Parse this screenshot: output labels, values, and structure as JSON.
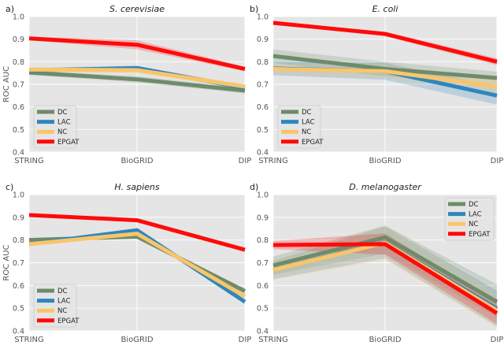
{
  "figure": {
    "ylabel": "ROC AUC"
  },
  "chart_data": [
    {
      "type": "line",
      "panel_label": "a)",
      "title": "S. cerevisiae",
      "ylabel": "ROC AUC",
      "categories": [
        "STRING",
        "BioGRID",
        "DIP"
      ],
      "ylim": [
        0.4,
        1.0
      ],
      "yticks": [
        "0.4",
        "0.5",
        "0.6",
        "0.7",
        "0.8",
        "0.9",
        "1.0"
      ],
      "grid": true,
      "legend_position": "lower-left",
      "series": [
        {
          "name": "DC",
          "color": "#6e8b6a",
          "values": [
            0.752,
            0.722,
            0.672
          ],
          "lower": [
            0.742,
            0.708,
            0.66
          ],
          "upper": [
            0.762,
            0.736,
            0.684
          ]
        },
        {
          "name": "LAC",
          "color": "#2f86bd",
          "values": [
            0.762,
            0.772,
            0.684
          ],
          "lower": [
            0.752,
            0.762,
            0.674
          ],
          "upper": [
            0.772,
            0.782,
            0.694
          ]
        },
        {
          "name": "NC",
          "color": "#f9c56a",
          "values": [
            0.765,
            0.763,
            0.69
          ],
          "lower": [
            0.754,
            0.748,
            0.68
          ],
          "upper": [
            0.776,
            0.778,
            0.7
          ]
        },
        {
          "name": "EPGAT",
          "color": "#ff0a0a",
          "values": [
            0.903,
            0.875,
            0.768
          ],
          "lower": [
            0.895,
            0.855,
            0.758
          ],
          "upper": [
            0.911,
            0.895,
            0.778
          ]
        }
      ]
    },
    {
      "type": "line",
      "panel_label": "b)",
      "title": "E. coli",
      "ylabel": "",
      "categories": [
        "STRING",
        "BioGRID",
        "DIP"
      ],
      "ylim": [
        0.4,
        1.0
      ],
      "yticks": [
        "0.4",
        "0.5",
        "0.6",
        "0.7",
        "0.8",
        "0.9",
        "1.0"
      ],
      "grid": true,
      "legend_position": "lower-left",
      "series": [
        {
          "name": "DC",
          "color": "#6e8b6a",
          "values": [
            0.825,
            0.768,
            0.728
          ],
          "lower": [
            0.795,
            0.735,
            0.7
          ],
          "upper": [
            0.855,
            0.8,
            0.756
          ]
        },
        {
          "name": "LAC",
          "color": "#2f86bd",
          "values": [
            0.77,
            0.758,
            0.65
          ],
          "lower": [
            0.74,
            0.72,
            0.61
          ],
          "upper": [
            0.8,
            0.795,
            0.69
          ]
        },
        {
          "name": "NC",
          "color": "#f9c56a",
          "values": [
            0.768,
            0.758,
            0.69
          ],
          "lower": [
            0.745,
            0.728,
            0.66
          ],
          "upper": [
            0.791,
            0.788,
            0.72
          ]
        },
        {
          "name": "EPGAT",
          "color": "#ff0a0a",
          "values": [
            0.972,
            0.923,
            0.8
          ],
          "lower": [
            0.965,
            0.913,
            0.785
          ],
          "upper": [
            0.979,
            0.933,
            0.815
          ]
        }
      ]
    },
    {
      "type": "line",
      "panel_label": "c)",
      "title": "H. sapiens",
      "ylabel": "ROC AUC",
      "categories": [
        "STRING",
        "BioGRID",
        "DIP"
      ],
      "ylim": [
        0.4,
        1.0
      ],
      "yticks": [
        "0.4",
        "0.5",
        "0.6",
        "0.7",
        "0.8",
        "0.9",
        "1.0"
      ],
      "grid": true,
      "legend_position": "lower-left",
      "series": [
        {
          "name": "DC",
          "color": "#6e8b6a",
          "values": [
            0.8,
            0.815,
            0.575
          ],
          "lower": [
            0.792,
            0.808,
            0.565
          ],
          "upper": [
            0.808,
            0.822,
            0.585
          ]
        },
        {
          "name": "LAC",
          "color": "#2f86bd",
          "values": [
            0.782,
            0.843,
            0.528
          ],
          "lower": [
            0.775,
            0.836,
            0.518
          ],
          "upper": [
            0.789,
            0.85,
            0.538
          ]
        },
        {
          "name": "NC",
          "color": "#f9c56a",
          "values": [
            0.782,
            0.828,
            0.552
          ],
          "lower": [
            0.775,
            0.821,
            0.542
          ],
          "upper": [
            0.789,
            0.835,
            0.562
          ]
        },
        {
          "name": "EPGAT",
          "color": "#ff0a0a",
          "values": [
            0.91,
            0.887,
            0.757
          ],
          "lower": [
            0.905,
            0.882,
            0.751
          ],
          "upper": [
            0.915,
            0.892,
            0.763
          ]
        }
      ]
    },
    {
      "type": "line",
      "panel_label": "d)",
      "title": "D. melanogaster",
      "ylabel": "",
      "categories": [
        "STRING",
        "BioGRID",
        "DIP"
      ],
      "ylim": [
        0.4,
        1.0
      ],
      "yticks": [
        "0.4",
        "0.5",
        "0.6",
        "0.7",
        "0.8",
        "0.9",
        "1.0"
      ],
      "grid": true,
      "legend_position": "upper-right",
      "series": [
        {
          "name": "DC",
          "color": "#6e8b6a",
          "values": [
            0.688,
            0.812,
            0.528
          ],
          "lower": [
            0.648,
            0.74,
            0.46
          ],
          "upper": [
            0.728,
            0.864,
            0.605
          ]
        },
        {
          "name": "LAC",
          "color": "#2f86bd",
          "values": [
            0.668,
            0.79,
            0.498
          ],
          "lower": [
            0.628,
            0.72,
            0.42
          ],
          "upper": [
            0.708,
            0.86,
            0.576
          ]
        },
        {
          "name": "NC",
          "color": "#f9c56a",
          "values": [
            0.668,
            0.788,
            0.49
          ],
          "lower": [
            0.625,
            0.712,
            0.415
          ],
          "upper": [
            0.711,
            0.864,
            0.565
          ]
        },
        {
          "name": "EPGAT",
          "color": "#ff0a0a",
          "values": [
            0.778,
            0.782,
            0.478
          ],
          "lower": [
            0.76,
            0.735,
            0.43
          ],
          "upper": [
            0.796,
            0.829,
            0.526
          ]
        }
      ]
    }
  ]
}
